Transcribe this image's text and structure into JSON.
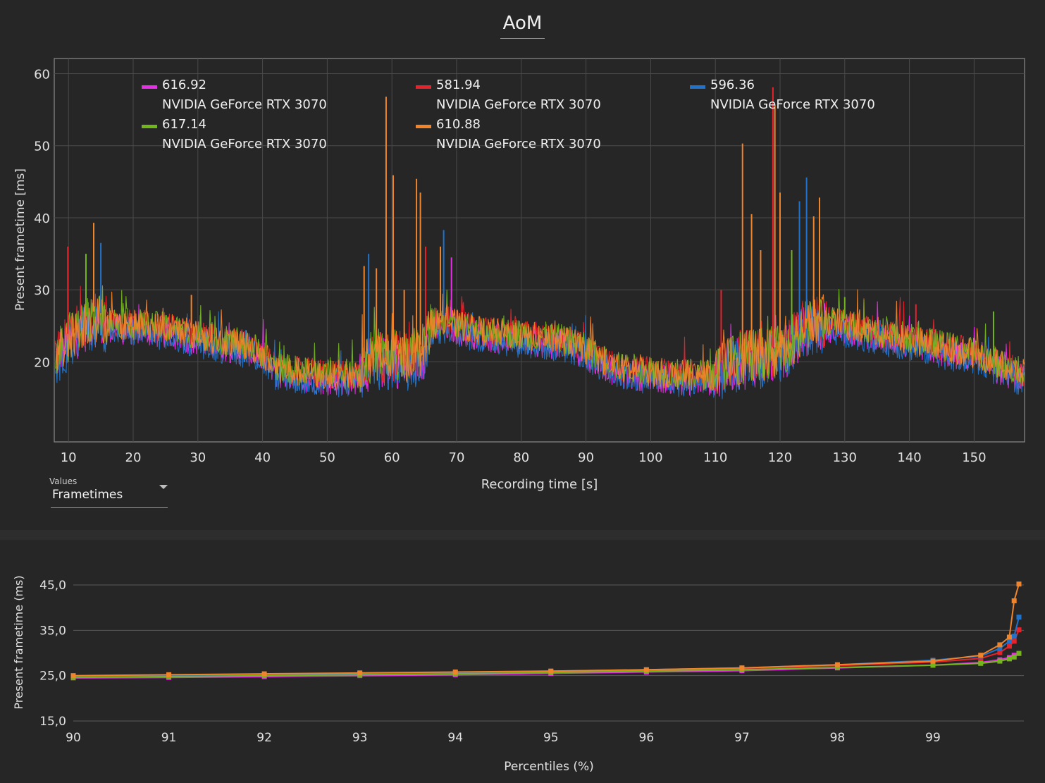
{
  "page": {
    "title": "AoM"
  },
  "controls": {
    "values_label": "Values",
    "values_selected": "Frametimes"
  },
  "colors": {
    "background": "#262626",
    "plot_bg": "#262626",
    "grid": "#4a4a4a",
    "series": [
      "#e62ee6",
      "#e6232b",
      "#1f73cc",
      "#72b51d",
      "#f0842a"
    ]
  },
  "chart_data": [
    {
      "type": "line",
      "xlabel": "Recording time [s]",
      "ylabel": "Present frametime [ms]",
      "xlim": [
        7.8,
        157.8
      ],
      "ylim": [
        8.9,
        62.1
      ],
      "xticks": [
        10,
        20,
        30,
        40,
        50,
        60,
        70,
        80,
        90,
        100,
        110,
        120,
        130,
        140,
        150
      ],
      "yticks": [
        20,
        30,
        40,
        50,
        60
      ],
      "grid": true,
      "legend_position": "top",
      "legend": [
        {
          "value": "616.92",
          "name": "NVIDIA GeForce RTX 3070",
          "color": "#e62ee6"
        },
        {
          "value": "581.94",
          "name": "NVIDIA GeForce RTX 3070",
          "color": "#e6232b"
        },
        {
          "value": "596.36",
          "name": "NVIDIA GeForce RTX 3070",
          "color": "#1f73cc"
        },
        {
          "value": "617.14",
          "name": "NVIDIA GeForce RTX 3070",
          "color": "#72b51d"
        },
        {
          "value": "610.88",
          "name": "NVIDIA GeForce RTX 3070",
          "color": "#f0842a"
        }
      ],
      "baseline": {
        "x": [
          8,
          10,
          12,
          14,
          16,
          18,
          20,
          25,
          30,
          35,
          38,
          40,
          42,
          45,
          50,
          54,
          55,
          56,
          58,
          60,
          62,
          64,
          65,
          66,
          68,
          70,
          72,
          75,
          80,
          85,
          88,
          90,
          92,
          95,
          100,
          105,
          108,
          110,
          112,
          115,
          118,
          120,
          122,
          124,
          126,
          130,
          135,
          140,
          145,
          150,
          155,
          158
        ],
        "y": [
          21,
          23,
          25,
          26,
          25.5,
          25,
          25,
          24.5,
          23.5,
          22.5,
          22,
          21,
          19,
          18.5,
          18,
          18,
          18.5,
          20,
          20.5,
          20.5,
          20.5,
          21,
          22,
          25,
          25.5,
          25,
          24.5,
          24,
          23.5,
          23,
          22.5,
          21.5,
          20.5,
          19,
          18.5,
          18,
          18,
          18,
          20,
          20.5,
          21,
          21,
          23,
          25,
          25.5,
          25,
          24,
          23,
          22,
          21,
          19,
          18
        ]
      },
      "spikes": [
        {
          "x": 9.9,
          "y": 36,
          "color": "#e6232b"
        },
        {
          "x": 12.7,
          "y": 35,
          "color": "#72b51d"
        },
        {
          "x": 13.9,
          "y": 39.3,
          "color": "#f0842a"
        },
        {
          "x": 15.0,
          "y": 36.5,
          "color": "#1f73cc"
        },
        {
          "x": 29.0,
          "y": 29.3,
          "color": "#f0842a"
        },
        {
          "x": 55.7,
          "y": 33.3,
          "color": "#f0842a"
        },
        {
          "x": 56.4,
          "y": 35,
          "color": "#1f73cc"
        },
        {
          "x": 57.6,
          "y": 33,
          "color": "#f0842a"
        },
        {
          "x": 59.1,
          "y": 56.8,
          "color": "#f0842a"
        },
        {
          "x": 60.2,
          "y": 45.9,
          "color": "#f0842a"
        },
        {
          "x": 61.9,
          "y": 30,
          "color": "#f0842a"
        },
        {
          "x": 63.8,
          "y": 45.4,
          "color": "#f0842a"
        },
        {
          "x": 64.4,
          "y": 43.5,
          "color": "#f0842a"
        },
        {
          "x": 65.2,
          "y": 36,
          "color": "#e6232b"
        },
        {
          "x": 67.5,
          "y": 36,
          "color": "#f0842a"
        },
        {
          "x": 68.0,
          "y": 38.3,
          "color": "#1f73cc"
        },
        {
          "x": 69.2,
          "y": 34.5,
          "color": "#e62ee6"
        },
        {
          "x": 110.9,
          "y": 30,
          "color": "#e6232b"
        },
        {
          "x": 114.2,
          "y": 50.3,
          "color": "#f0842a"
        },
        {
          "x": 115.6,
          "y": 40.5,
          "color": "#f0842a"
        },
        {
          "x": 117.0,
          "y": 35.5,
          "color": "#f0842a"
        },
        {
          "x": 118.9,
          "y": 58.1,
          "color": "#e6232b"
        },
        {
          "x": 119.2,
          "y": 55.6,
          "color": "#f0842a"
        },
        {
          "x": 120.0,
          "y": 43.5,
          "color": "#f0842a"
        },
        {
          "x": 121.8,
          "y": 35.5,
          "color": "#72b51d"
        },
        {
          "x": 123.0,
          "y": 42.3,
          "color": "#1f73cc"
        },
        {
          "x": 124.1,
          "y": 45.6,
          "color": "#1f73cc"
        },
        {
          "x": 125.2,
          "y": 40.2,
          "color": "#f0842a"
        },
        {
          "x": 126.1,
          "y": 42.8,
          "color": "#f0842a"
        },
        {
          "x": 130.0,
          "y": 29,
          "color": "#72b51d"
        },
        {
          "x": 141.0,
          "y": 28,
          "color": "#e6232b"
        },
        {
          "x": 153.0,
          "y": 27,
          "color": "#72b51d"
        }
      ]
    },
    {
      "type": "line",
      "xlabel": "Percentiles (%)",
      "ylabel": "Present frametime (ms)",
      "xlim": [
        89.8,
        99.95
      ],
      "ylim": [
        15,
        45
      ],
      "xticks": [
        90,
        91,
        92,
        93,
        94,
        95,
        96,
        97,
        98,
        99
      ],
      "yticks": [
        15,
        25,
        35,
        45
      ],
      "ytick_labels": [
        "15,0",
        "25,0",
        "35,0",
        "45,0"
      ],
      "grid": true,
      "x": [
        90,
        91,
        92,
        93,
        94,
        95,
        96,
        97,
        98,
        99,
        99.5,
        99.7,
        99.8,
        99.85,
        99.9
      ],
      "series": [
        {
          "color": "#e62ee6",
          "values": [
            24.5,
            24.6,
            24.8,
            25.0,
            25.2,
            25.5,
            25.8,
            26.1,
            26.7,
            27.3,
            27.9,
            28.5,
            29.0,
            29.5,
            29.9
          ]
        },
        {
          "color": "#e6232b",
          "values": [
            24.7,
            24.9,
            25.1,
            25.3,
            25.6,
            25.9,
            26.2,
            26.6,
            27.2,
            28.0,
            28.8,
            30.1,
            31.5,
            32.6,
            35.1
          ]
        },
        {
          "color": "#1f73cc",
          "values": [
            24.8,
            25.0,
            25.2,
            25.4,
            25.7,
            26.0,
            26.3,
            26.7,
            27.4,
            28.4,
            29.3,
            31.0,
            32.6,
            33.7,
            37.9
          ]
        },
        {
          "color": "#72b51d",
          "values": [
            24.6,
            24.8,
            25.0,
            25.2,
            25.4,
            25.7,
            26.0,
            26.3,
            26.8,
            27.3,
            27.7,
            28.2,
            28.7,
            29.1,
            29.9
          ]
        },
        {
          "color": "#f0842a",
          "values": [
            25.0,
            25.2,
            25.4,
            25.6,
            25.8,
            26.0,
            26.3,
            26.7,
            27.4,
            28.2,
            29.5,
            31.8,
            33.5,
            41.5,
            45.2
          ]
        }
      ]
    }
  ]
}
